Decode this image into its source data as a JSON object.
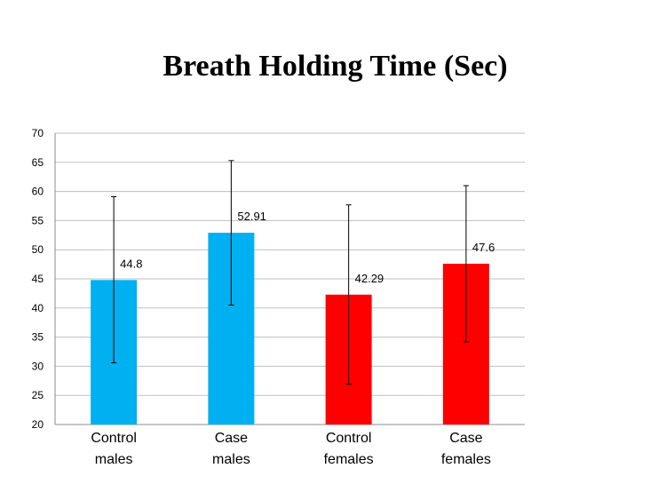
{
  "chart_data": {
    "type": "bar",
    "title": "Breath Holding Time (Sec)",
    "xlabel": "",
    "ylabel": "",
    "ylim": [
      20,
      70
    ],
    "ytick_step": 5,
    "grid": true,
    "legend": "none",
    "categories": [
      [
        "Control",
        "males"
      ],
      [
        "Case",
        "males"
      ],
      [
        "Control",
        "females"
      ],
      [
        "Case",
        "females"
      ]
    ],
    "values": [
      44.8,
      52.91,
      42.29,
      47.6
    ],
    "value_labels": [
      "44.8",
      "52.91",
      "42.29",
      "47.6"
    ],
    "error_bars": [
      {
        "low": 30.6,
        "high": 59.1
      },
      {
        "low": 40.5,
        "high": 65.3
      },
      {
        "low": 26.9,
        "high": 57.7
      },
      {
        "low": 34.2,
        "high": 61.0
      }
    ],
    "colors": [
      "#00B0F0",
      "#00B0F0",
      "#FF0000",
      "#FF0000"
    ]
  }
}
